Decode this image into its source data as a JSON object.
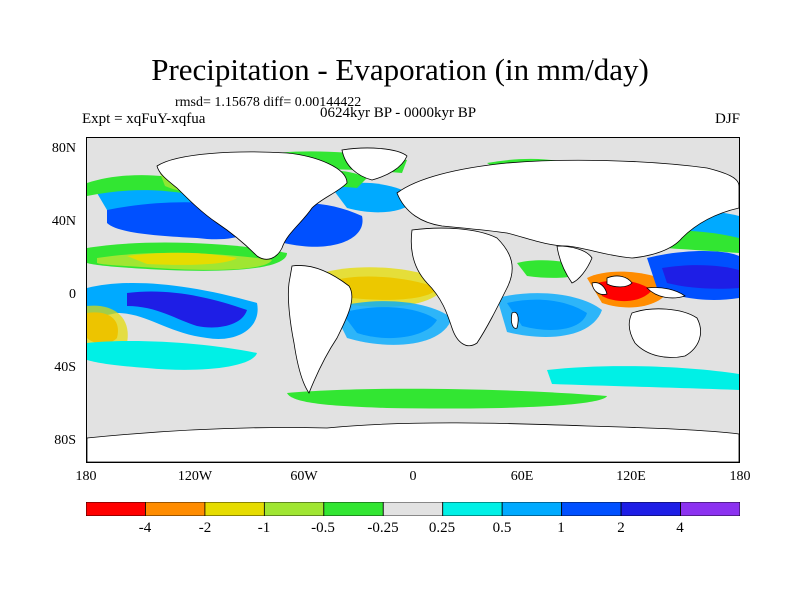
{
  "header": {
    "title": "Precipitation - Evaporation (in mm/day)",
    "stats": "rmsd= 1.15678 diff= 0.00144422",
    "experiment": "Expt = xqFuY-xqfua",
    "period": "0624kyr BP - 0000kyr BP",
    "season": "DJF"
  },
  "map": {
    "lat_labels": [
      "80N",
      "40N",
      "0",
      "40S",
      "80S"
    ],
    "lon_labels": [
      "180",
      "120W",
      "60W",
      "0",
      "60E",
      "120E",
      "180"
    ],
    "background_color": "#e2e2e2",
    "land_color": "#ffffff",
    "coastline_color": "#000000"
  },
  "colorbar": {
    "tick_labels": [
      "-4",
      "-2",
      "-1",
      "-0.5",
      "-0.25",
      "0.25",
      "0.5",
      "1",
      "2",
      "4"
    ],
    "colors": [
      "#ff0000",
      "#ff8c00",
      "#e6dc00",
      "#a0e632",
      "#32e632",
      "#e2e2e2",
      "#00f0e6",
      "#00aaff",
      "#0050ff",
      "#1e1ee6",
      "#8c32f0"
    ]
  }
}
